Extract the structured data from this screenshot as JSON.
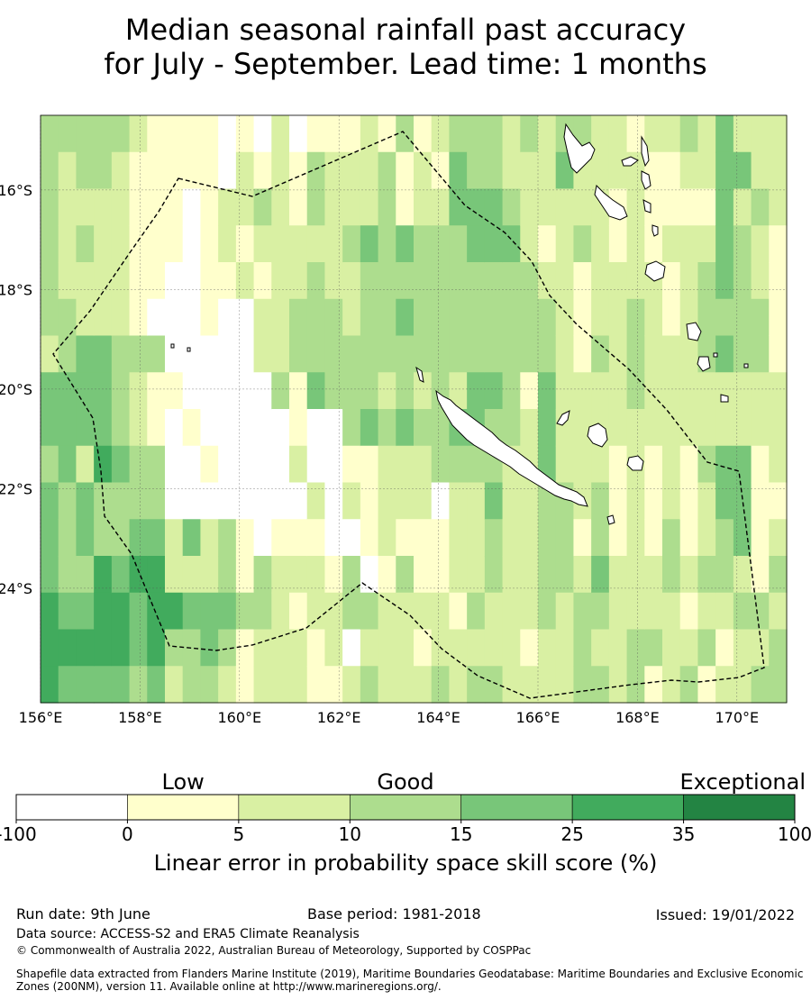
{
  "title_line1": "Median seasonal rainfall past accuracy",
  "title_line2": "for July - September. Lead time: 1 months",
  "map": {
    "lon_labels": [
      "156°E",
      "158°E",
      "160°E",
      "162°E",
      "164°E",
      "166°E",
      "168°E",
      "170°E"
    ],
    "lat_labels": [
      "16°S",
      "18°S",
      "20°S",
      "22°S",
      "24°S"
    ],
    "lon_values": [
      156,
      158,
      160,
      162,
      164,
      166,
      168,
      170
    ],
    "lat_values": [
      -16,
      -18,
      -20,
      -22,
      -24
    ],
    "lon_range": [
      156,
      171
    ],
    "lat_range": [
      -26.3,
      -14.5
    ],
    "grid_lines": true,
    "boundary_style": "dashed",
    "grid_cell_classes": [
      "3333332443444555",
      "3222233444333454",
      "3323224442443454",
      "3322224445335554",
      "3222223334334554",
      "2111113223345443",
      "1111103113345554",
      "1111000100022532",
      "1100000010042433",
      "1111110001022443",
      "0022100000033432",
      "1221200000011311",
      "0132122000003322",
      "2222222300012222",
      "0112233112012122",
      "1332333400212211",
      "1222233300001221",
      "1223223331203302",
      "2224333341110323",
      "1333333232221222",
      "3114343342213222",
      "1223333232211212",
      "2123333333011223",
      "3443333243222122",
      "3344333443222323",
      "3344333433433223",
      "2234333332222222",
      "3222333122222212",
      "2221233444333322",
      "3422222222333222",
      "3223111222212333",
      "2222223222334323",
      "2211222221112222",
      "1222233322222233",
      "2111222221112231",
      "2112112222233222",
      "3212222221112123",
      "2212333223223231",
      "4444434224433212",
      "2423333224442322",
      "2232233221111323",
      "2221111222123233"
    ]
  },
  "colorbar": {
    "category_labels": [
      "Low",
      "Good",
      "Exceptional"
    ],
    "tick_labels": [
      "-100",
      "0",
      "5",
      "10",
      "15",
      "25",
      "35",
      "100"
    ],
    "colors": [
      "#ffffff",
      "#ffffcc",
      "#d9f0a3",
      "#addd8e",
      "#78c679",
      "#41ab5d",
      "#238443"
    ],
    "label": "Linear error in probability space skill score (%)"
  },
  "footer": {
    "run_date": "Run date: 9th June",
    "base_period": "Base period: 1981-2018",
    "issued": "Issued: 19/01/2022",
    "data_source": "Data source: ACCESS-S2 and ERA5 Climate Reanalysis",
    "copyright": "© Commonwealth of Australia 2022, Australian Bureau of Meteorology, Supported by COSPPac",
    "shapefile_line1": "Shapefile data extracted from Flanders Marine Institute (2019), Maritime Boundaries Geodatabase: Maritime Boundaries and Exclusive Economic",
    "shapefile_line2": "Zones (200NM), version 11. Available online at http://www.marineregions.org/."
  }
}
